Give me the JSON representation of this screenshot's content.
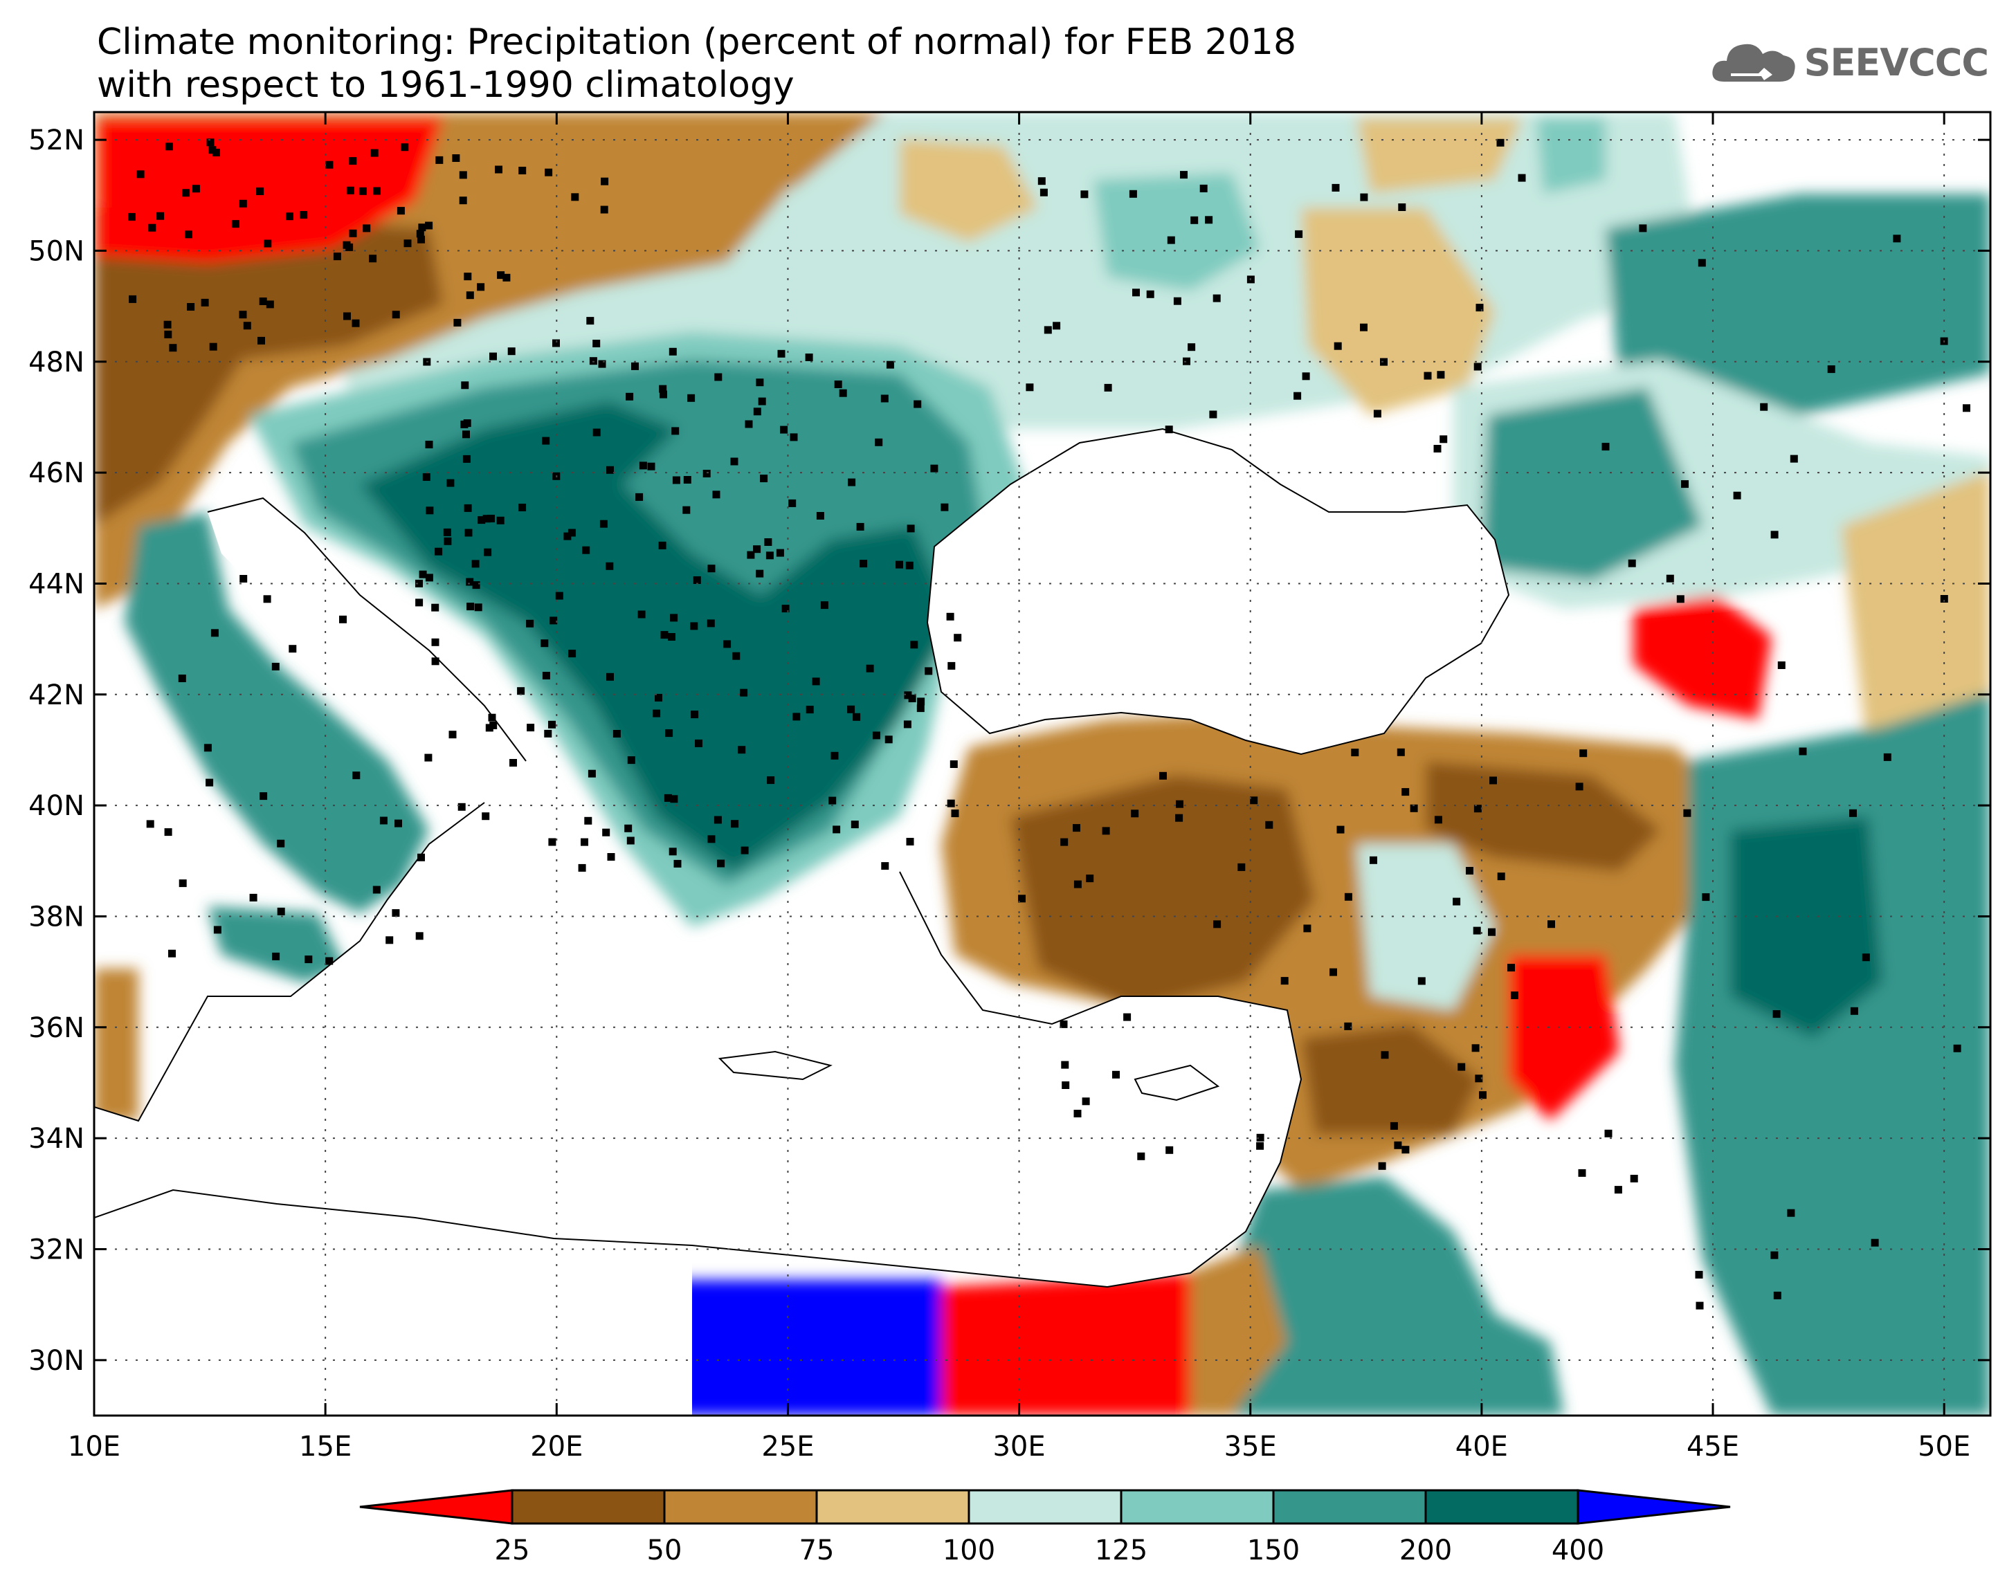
{
  "title": {
    "line1": "Climate monitoring: Precipitation (percent of normal) for FEB 2018",
    "line2": "with respect to 1961-1990 climatology"
  },
  "logo": {
    "text": "SEEVCCC",
    "icon": "cloud-icon"
  },
  "map": {
    "lat_range": [
      29,
      52.5
    ],
    "lon_range": [
      10,
      51
    ],
    "lat_ticks": [
      {
        "value": 52,
        "label": "52N"
      },
      {
        "value": 50,
        "label": "50N"
      },
      {
        "value": 48,
        "label": "48N"
      },
      {
        "value": 46,
        "label": "46N"
      },
      {
        "value": 44,
        "label": "44N"
      },
      {
        "value": 42,
        "label": "42N"
      },
      {
        "value": 40,
        "label": "40N"
      },
      {
        "value": 38,
        "label": "38N"
      },
      {
        "value": 36,
        "label": "36N"
      },
      {
        "value": 34,
        "label": "34N"
      },
      {
        "value": 32,
        "label": "32N"
      },
      {
        "value": 30,
        "label": "30N"
      }
    ],
    "lon_ticks": [
      {
        "value": 10,
        "label": "10E"
      },
      {
        "value": 15,
        "label": "15E"
      },
      {
        "value": 20,
        "label": "20E"
      },
      {
        "value": 25,
        "label": "25E"
      },
      {
        "value": 30,
        "label": "30E"
      },
      {
        "value": 35,
        "label": "35E"
      },
      {
        "value": 40,
        "label": "40E"
      },
      {
        "value": 45,
        "label": "45E"
      },
      {
        "value": 50,
        "label": "50E"
      }
    ],
    "grid": "dotted"
  },
  "legend": {
    "colors": [
      "#ff0000",
      "#8b5413",
      "#c08535",
      "#e2c27e",
      "#c6e8e0",
      "#7fcbbf",
      "#35968c",
      "#036b62",
      "#0000ff"
    ],
    "labels": [
      "25",
      "50",
      "75",
      "100",
      "125",
      "150",
      "200",
      "400"
    ]
  }
}
